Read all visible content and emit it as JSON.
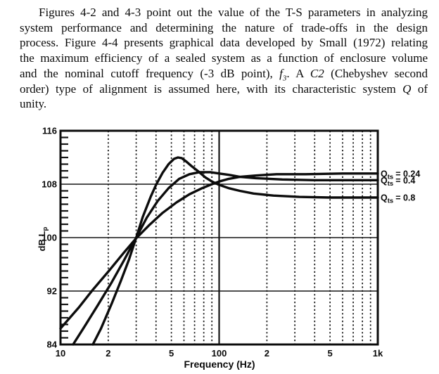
{
  "paragraph": {
    "line1": "Figures 4-2 and 4-3 point out the value of the T-S parameters in analyzing",
    "line2": "system performance and determining the nature of trade-offs in the design",
    "line3": "process. Figure 4-4 presents graphical data developed by Small (1972) relating",
    "line4": "the maximum efficiency of a sealed system as a function of enclosure volume",
    "line5a": "and the nominal cutoff frequency (-3 dB point), ",
    "line5_f": "f",
    "line5_fsub": "3",
    "line5b": ". A ",
    "line5_c2": "C2",
    "line5c": " (Chebyshev second",
    "line6a": "order) type of alignment is assumed here, with its characteristic system ",
    "line6_q": "Q",
    "line6b": " of",
    "line7": "unity."
  },
  "chart_data": {
    "type": "line",
    "title": "",
    "xlabel": "Frequency (Hz)",
    "ylabel": "dB Lp",
    "ylabel_display": {
      "base": "dB L",
      "sub": "p"
    },
    "x_scale": "log",
    "xlim": [
      10,
      1000
    ],
    "ylim": [
      84,
      116
    ],
    "grid": "on",
    "x_tick_values": [
      10,
      20,
      50,
      100,
      200,
      500,
      1000
    ],
    "x_tick_labels": [
      "10",
      "2",
      "5",
      "100",
      "2",
      "5",
      "1k"
    ],
    "y_tick_values": [
      116,
      108,
      100,
      92,
      84
    ],
    "y_tick_labels": [
      "116",
      "108",
      "100",
      "92",
      "84"
    ],
    "y_minor_tick_step": 1,
    "x_minor_gridlines": [
      20,
      30,
      40,
      50,
      60,
      70,
      80,
      90,
      200,
      300,
      400,
      500,
      600,
      700,
      800,
      900
    ],
    "x_major_gridlines": [
      100
    ],
    "y_gridlines": [
      92,
      100,
      108
    ],
    "legend_position": "right-of-curve-ends",
    "series_labels": [
      {
        "id": "qts-0-24",
        "base": "Q",
        "sub": "ts",
        "rest": "= 0.24"
      },
      {
        "id": "qts-0-4",
        "base": "Q",
        "sub": "ts",
        "rest": "= 0.4"
      },
      {
        "id": "qts-0-8",
        "base": "Q",
        "sub": "ts",
        "rest": "= 0.8"
      }
    ],
    "series": [
      {
        "name": "Qts = 0.24",
        "points": [
          [
            10,
            86.4
          ],
          [
            13,
            89.5
          ],
          [
            16,
            92.2
          ],
          [
            20,
            94.9
          ],
          [
            25,
            97.7
          ],
          [
            30,
            99.9
          ],
          [
            36,
            101.8
          ],
          [
            44,
            103.7
          ],
          [
            54,
            105.3
          ],
          [
            65,
            106.5
          ],
          [
            78,
            107.4
          ],
          [
            90,
            108.0
          ],
          [
            100,
            108.4
          ],
          [
            115,
            108.8
          ],
          [
            135,
            109.1
          ],
          [
            170,
            109.3
          ],
          [
            230,
            109.5
          ],
          [
            350,
            109.5
          ],
          [
            600,
            109.6
          ],
          [
            1000,
            109.6
          ]
        ]
      },
      {
        "name": "Qts = 0.4",
        "points": [
          [
            12,
            84
          ],
          [
            14,
            86.5
          ],
          [
            17,
            89.7
          ],
          [
            21,
            93.3
          ],
          [
            25,
            96.5
          ],
          [
            30,
            100
          ],
          [
            35,
            103
          ],
          [
            41,
            105.5
          ],
          [
            48,
            107.4
          ],
          [
            56,
            108.8
          ],
          [
            65,
            109.5
          ],
          [
            75,
            109.8
          ],
          [
            88,
            109.8
          ],
          [
            100,
            109.6
          ],
          [
            115,
            109.4
          ],
          [
            135,
            109.1
          ],
          [
            170,
            108.9
          ],
          [
            250,
            108.7
          ],
          [
            400,
            108.6
          ],
          [
            700,
            108.6
          ],
          [
            1000,
            108.6
          ]
        ]
      },
      {
        "name": "Qts = 0.8",
        "points": [
          [
            16,
            84
          ],
          [
            18,
            86.4
          ],
          [
            21,
            90.1
          ],
          [
            24,
            93.5
          ],
          [
            27,
            96.7
          ],
          [
            30,
            100
          ],
          [
            33,
            103.1
          ],
          [
            37,
            106.1
          ],
          [
            40,
            107.9
          ],
          [
            44,
            109.7
          ],
          [
            48,
            111.0
          ],
          [
            52,
            111.8
          ],
          [
            55,
            112
          ],
          [
            58,
            111.9
          ],
          [
            62,
            111.4
          ],
          [
            67,
            110.7
          ],
          [
            74,
            109.9
          ],
          [
            82,
            109.0
          ],
          [
            90,
            108.4
          ],
          [
            100,
            107.9
          ],
          [
            115,
            107.4
          ],
          [
            135,
            107.0
          ],
          [
            165,
            106.6
          ],
          [
            220,
            106.3
          ],
          [
            320,
            106.1
          ],
          [
            500,
            106.0
          ],
          [
            1000,
            106.0
          ]
        ]
      }
    ]
  }
}
